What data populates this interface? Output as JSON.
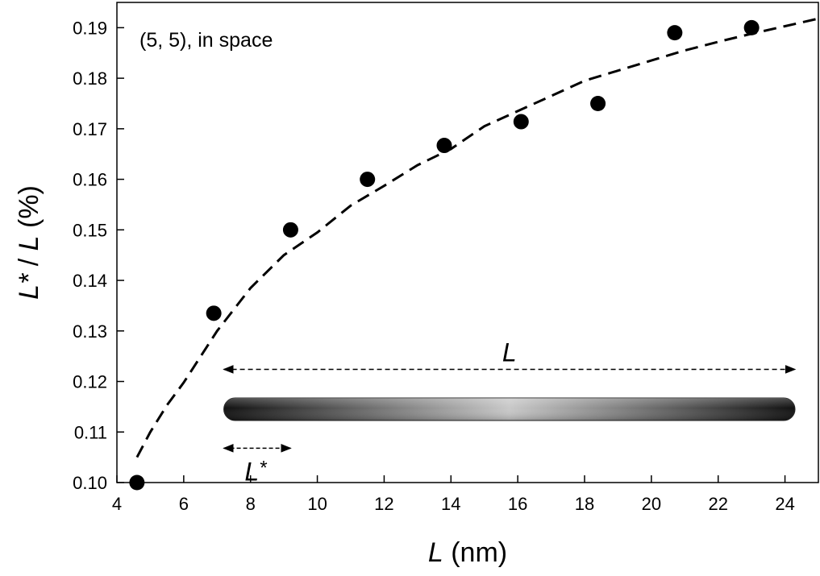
{
  "chart_data": {
    "type": "scatter",
    "annotation": "(5, 5), in space",
    "xlabel": {
      "var": "L",
      "unit": "(nm)"
    },
    "ylabel": {
      "num": "L",
      "star": "*",
      "sep": "/",
      "den": "L",
      "unit": "(%)"
    },
    "xlim": [
      4,
      25
    ],
    "ylim": [
      0.1,
      0.195
    ],
    "x_ticks": [
      "4",
      "6",
      "8",
      "10",
      "12",
      "14",
      "16",
      "18",
      "20",
      "22",
      "24"
    ],
    "y_ticks": [
      "0.10",
      "0.11",
      "0.12",
      "0.13",
      "0.14",
      "0.15",
      "0.16",
      "0.17",
      "0.18",
      "0.19"
    ],
    "grid": false,
    "series": [
      {
        "style": "filled-circle",
        "color": "#000000",
        "points": [
          {
            "x": 4.6,
            "y": 0.1
          },
          {
            "x": 6.9,
            "y": 0.1335
          },
          {
            "x": 9.2,
            "y": 0.15
          },
          {
            "x": 11.5,
            "y": 0.16
          },
          {
            "x": 13.8,
            "y": 0.1667
          },
          {
            "x": 16.1,
            "y": 0.1714
          },
          {
            "x": 18.4,
            "y": 0.175
          },
          {
            "x": 20.7,
            "y": 0.189
          },
          {
            "x": 23.0,
            "y": 0.19
          }
        ]
      },
      {
        "style": "dashed-line",
        "color": "#000000",
        "points": [
          {
            "x": 4.6,
            "y": 0.105
          },
          {
            "x": 5.0,
            "y": 0.11
          },
          {
            "x": 5.5,
            "y": 0.1153
          },
          {
            "x": 6.0,
            "y": 0.1198
          },
          {
            "x": 7.0,
            "y": 0.13
          },
          {
            "x": 8.0,
            "y": 0.1385
          },
          {
            "x": 9.0,
            "y": 0.145
          },
          {
            "x": 10.0,
            "y": 0.1495
          },
          {
            "x": 11.0,
            "y": 0.1548
          },
          {
            "x": 12.0,
            "y": 0.1587
          },
          {
            "x": 13.0,
            "y": 0.1628
          },
          {
            "x": 14.0,
            "y": 0.166
          },
          {
            "x": 15.0,
            "y": 0.1705
          },
          {
            "x": 16.0,
            "y": 0.1735
          },
          {
            "x": 17.0,
            "y": 0.1765
          },
          {
            "x": 18.0,
            "y": 0.1795
          },
          {
            "x": 19.0,
            "y": 0.1815
          },
          {
            "x": 20.0,
            "y": 0.1835
          },
          {
            "x": 21.0,
            "y": 0.1855
          },
          {
            "x": 22.0,
            "y": 0.1872
          },
          {
            "x": 23.0,
            "y": 0.1888
          },
          {
            "x": 24.0,
            "y": 0.1903
          },
          {
            "x": 25.0,
            "y": 0.1918
          }
        ]
      }
    ],
    "inset": {
      "rod_label": "L",
      "segment_label": "L",
      "segment_label_star": "*",
      "rod_span_x": [
        7.2,
        24.3
      ],
      "segment_span_x": [
        7.2,
        9.2
      ],
      "rod_y": 0.1145,
      "arrow_y": 0.1224,
      "segment_arrow_y": 0.1068,
      "rod_gradient": [
        "#111111",
        "#c8c8c8",
        "#111111"
      ]
    }
  }
}
